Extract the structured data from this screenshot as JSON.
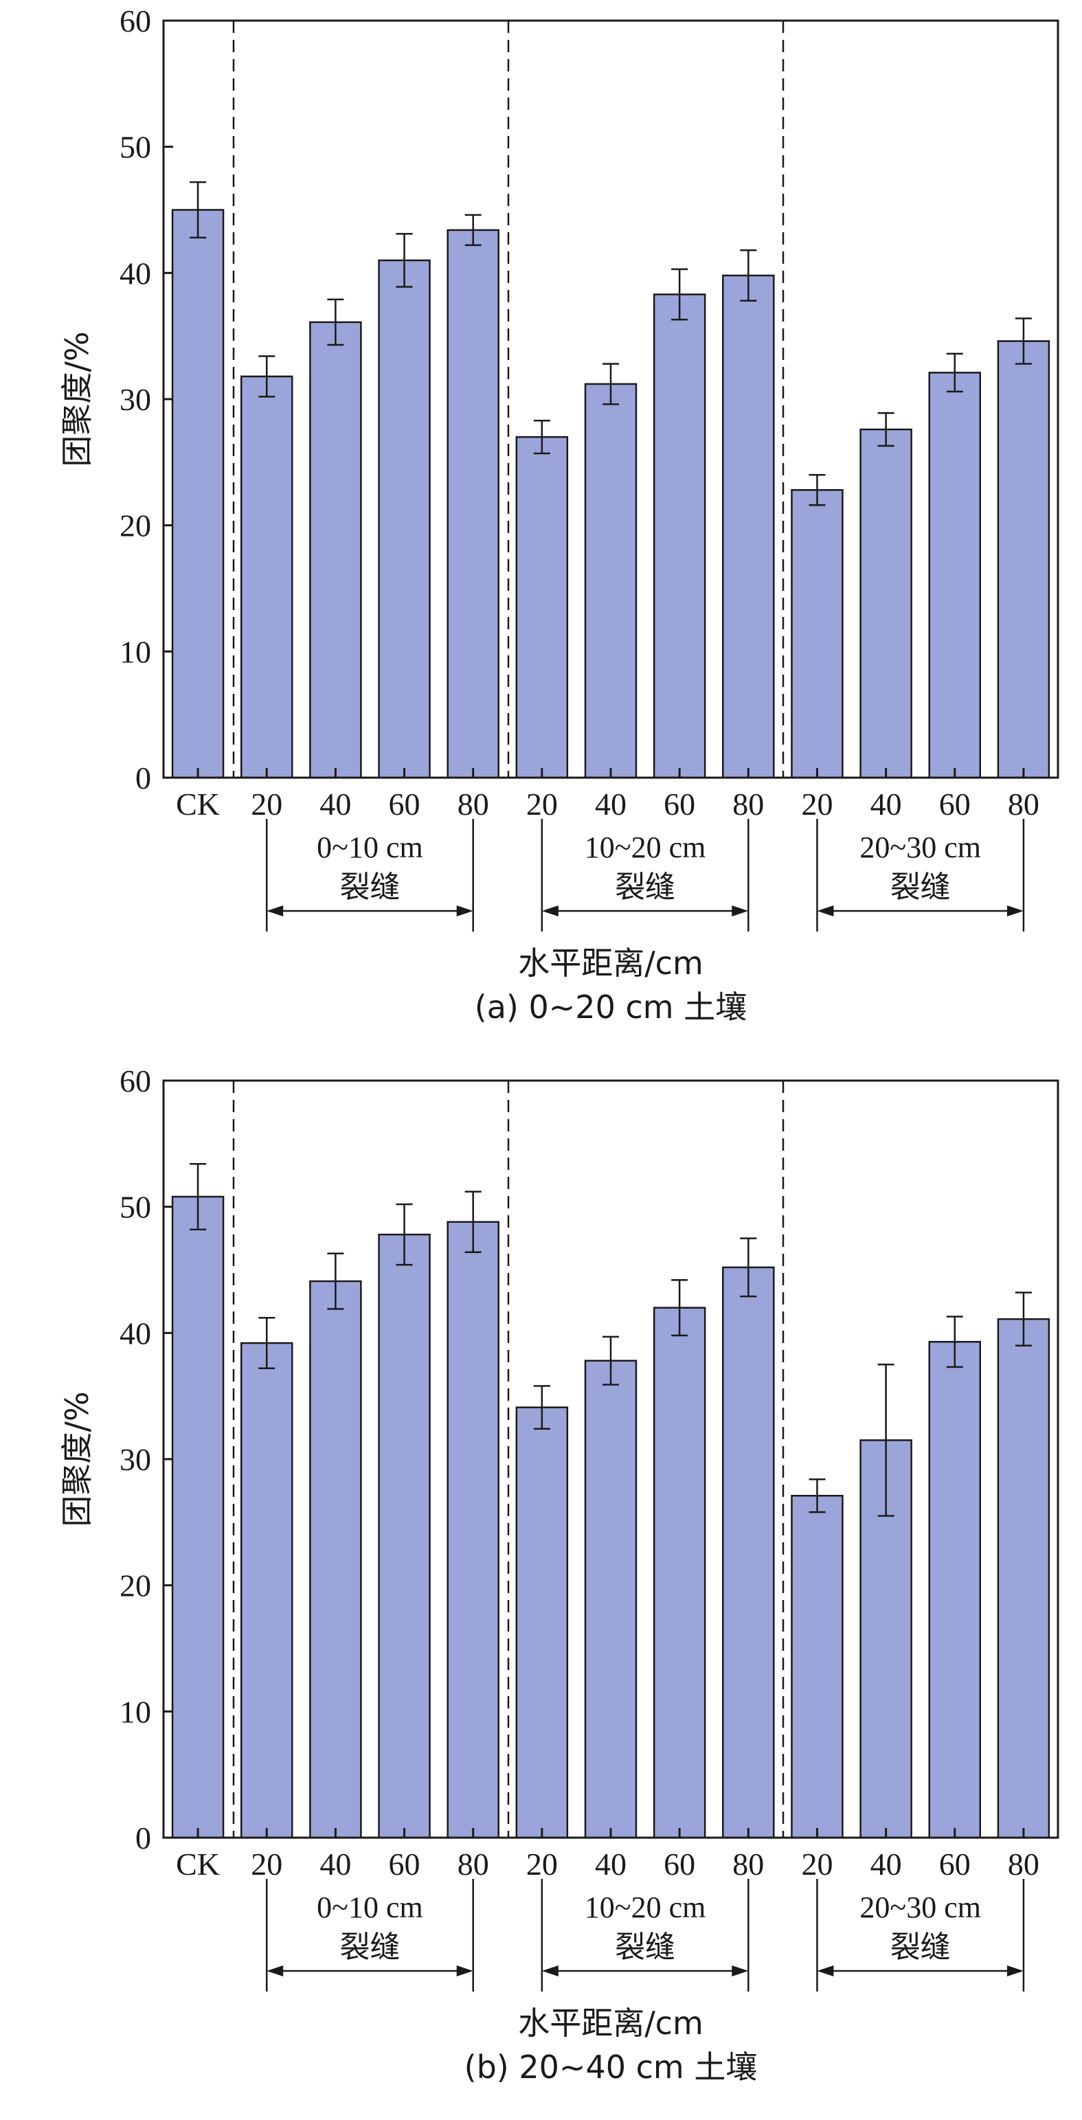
{
  "chart_data": [
    {
      "type": "bar",
      "caption": "(a) 0~20 cm 土壤",
      "ylabel": "团聚度/%",
      "xlabel": "水平距离/cm",
      "ylim": [
        0,
        60
      ],
      "yticks": [
        "0",
        "10",
        "20",
        "30",
        "40",
        "50",
        "60"
      ],
      "categories": [
        "CK",
        "20",
        "40",
        "60",
        "80",
        "20",
        "40",
        "60",
        "80",
        "20",
        "40",
        "60",
        "80"
      ],
      "values": [
        45.0,
        31.8,
        36.1,
        41.0,
        43.4,
        27.0,
        31.2,
        38.3,
        39.8,
        22.8,
        27.6,
        32.1,
        34.6
      ],
      "errors": [
        2.2,
        1.6,
        1.8,
        2.1,
        1.2,
        1.3,
        1.6,
        2.0,
        2.0,
        1.2,
        1.3,
        1.5,
        1.8
      ],
      "groups": [
        {
          "label_top": "0~10 cm",
          "label_bottom": "裂缝"
        },
        {
          "label_top": "10~20 cm",
          "label_bottom": "裂缝"
        },
        {
          "label_top": "20~30 cm",
          "label_bottom": "裂缝"
        }
      ],
      "bar_color": "#9ca5d9"
    },
    {
      "type": "bar",
      "caption": "(b) 20~40 cm 土壤",
      "ylabel": "团聚度/%",
      "xlabel": "水平距离/cm",
      "ylim": [
        0,
        60
      ],
      "yticks": [
        "0",
        "10",
        "20",
        "30",
        "40",
        "50",
        "60"
      ],
      "categories": [
        "CK",
        "20",
        "40",
        "60",
        "80",
        "20",
        "40",
        "60",
        "80",
        "20",
        "40",
        "60",
        "80"
      ],
      "values": [
        50.8,
        39.2,
        44.1,
        47.8,
        48.8,
        34.1,
        37.8,
        42.0,
        45.2,
        27.1,
        31.5,
        39.3,
        41.1
      ],
      "errors": [
        2.6,
        2.0,
        2.2,
        2.4,
        2.4,
        1.7,
        1.9,
        2.2,
        2.3,
        1.3,
        6.0,
        2.0,
        2.1
      ],
      "groups": [
        {
          "label_top": "0~10 cm",
          "label_bottom": "裂缝"
        },
        {
          "label_top": "10~20 cm",
          "label_bottom": "裂缝"
        },
        {
          "label_top": "20~30 cm",
          "label_bottom": "裂缝"
        }
      ],
      "bar_color": "#9ca5d9"
    }
  ]
}
